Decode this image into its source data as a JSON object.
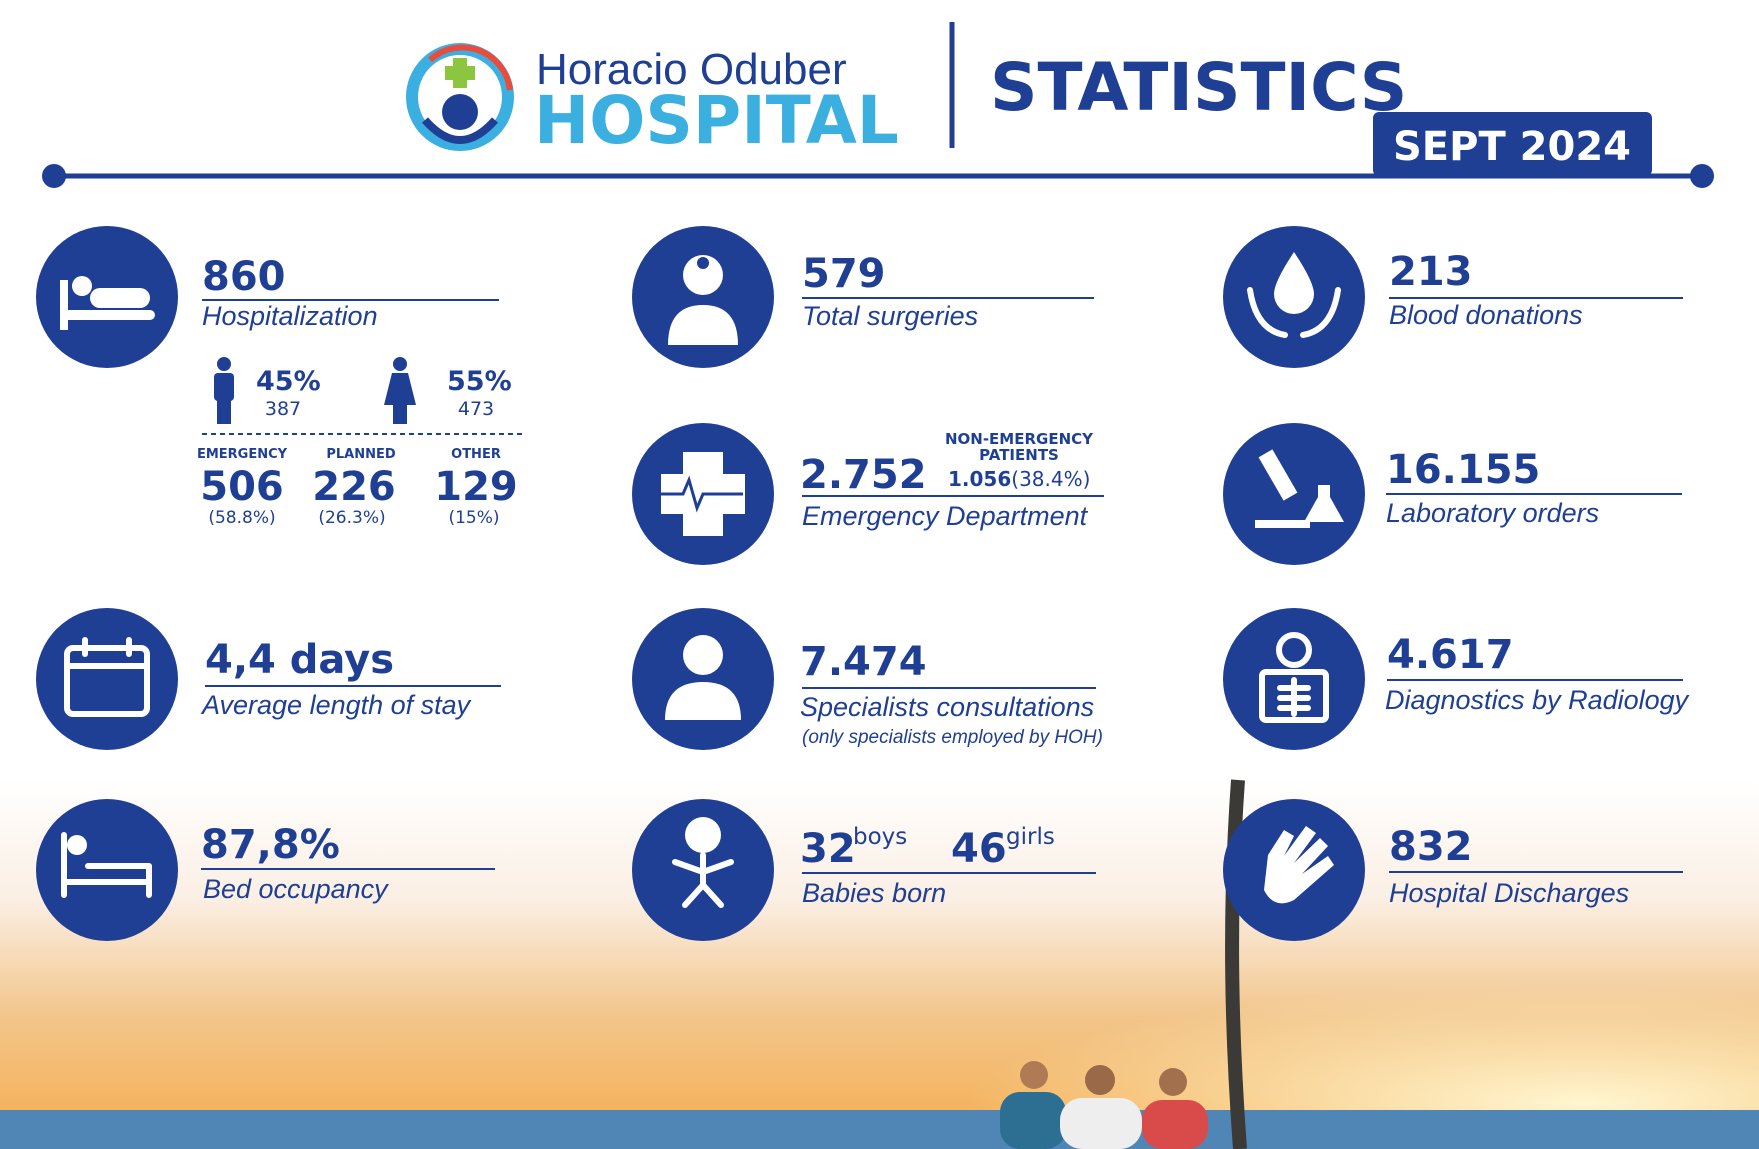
{
  "header": {
    "logo_top": "Horacio Oduber",
    "logo_bottom": "HOSPITAL",
    "title": "STATISTICS",
    "period": "SEPT 2024"
  },
  "hospitalization": {
    "value": "860",
    "label": "Hospitalization",
    "male": {
      "percent": "45%",
      "count": "387"
    },
    "female": {
      "percent": "55%",
      "count": "473"
    },
    "types": [
      {
        "label": "EMERGENCY",
        "value": "506",
        "share": "(58.8%)"
      },
      {
        "label": "PLANNED",
        "value": "226",
        "share": "(26.3%)"
      },
      {
        "label": "OTHER",
        "value": "129",
        "share": "(15%)"
      }
    ]
  },
  "surgeries": {
    "value": "579",
    "label": "Total surgeries"
  },
  "blood": {
    "value": "213",
    "label": "Blood donations"
  },
  "emergency": {
    "value": "2.752",
    "label": "Emergency Department",
    "note_line1": "NON-EMERGENCY",
    "note_line2": "PATIENTS",
    "note_value": "1.056",
    "note_share": "(38.4%)"
  },
  "laboratory": {
    "value": "16.155",
    "label": "Laboratory orders"
  },
  "stay": {
    "value": "4,4 days",
    "label": "Average length of stay"
  },
  "specialists": {
    "value": "7.474",
    "label": "Specialists consultations",
    "note": "(only specialists employed by HOH)"
  },
  "radiology": {
    "value": "4.617",
    "label": "Diagnostics by Radiology"
  },
  "occupancy": {
    "value": "87,8%",
    "label": "Bed occupancy"
  },
  "babies": {
    "boys": "32",
    "boys_label": "boys",
    "girls": "46",
    "girls_label": "girls",
    "label": "Babies born"
  },
  "discharges": {
    "value": "832",
    "label": "Hospital Discharges"
  }
}
